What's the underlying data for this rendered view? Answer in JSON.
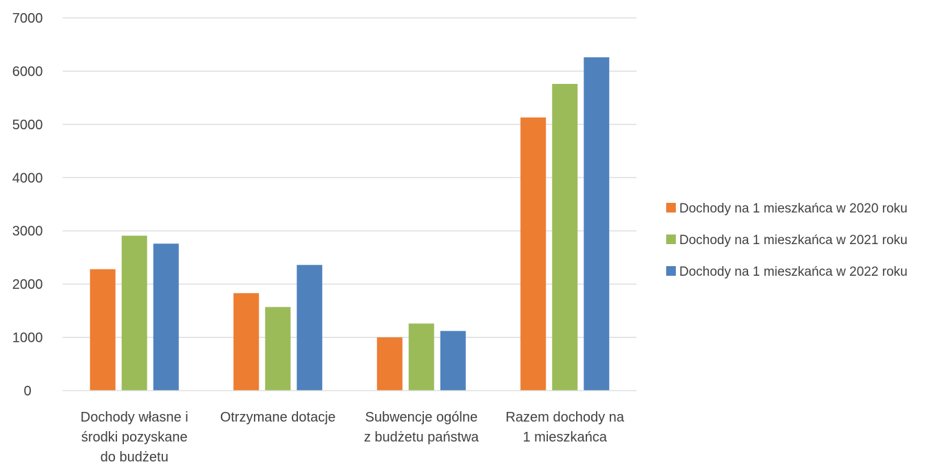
{
  "chart_data": {
    "type": "bar",
    "title": "",
    "xlabel": "",
    "ylabel": "",
    "ylim": [
      0,
      7000
    ],
    "yticks": [
      0,
      1000,
      2000,
      3000,
      4000,
      5000,
      6000,
      7000
    ],
    "ytick_labels": [
      "0",
      "1000",
      "2000",
      "3000",
      "4000",
      "5000",
      "6000",
      "7000"
    ],
    "grid": true,
    "legend_position": "right",
    "categories": [
      [
        "Dochody własne i",
        "środki pozyskane",
        "do budżetu"
      ],
      [
        "Otrzymane dotacje"
      ],
      [
        "Subwencje ogólne",
        "z budżetu państwa"
      ],
      [
        "Razem dochody na",
        "1 mieszkańca"
      ]
    ],
    "series": [
      {
        "name": "Dochody na 1 mieszkańca w 2020 roku",
        "color": "#ED7D31",
        "values": [
          2280,
          1830,
          1000,
          5130
        ]
      },
      {
        "name": "Dochody na 1 mieszkańca w 2021 roku",
        "color": "#9BBB59",
        "values": [
          2910,
          1570,
          1260,
          5760
        ]
      },
      {
        "name": "Dochody na 1 mieszkańca w 2022 roku",
        "color": "#4F81BD",
        "values": [
          2760,
          2360,
          1120,
          6260
        ]
      }
    ],
    "gridline_color": "#D9D9D9"
  }
}
